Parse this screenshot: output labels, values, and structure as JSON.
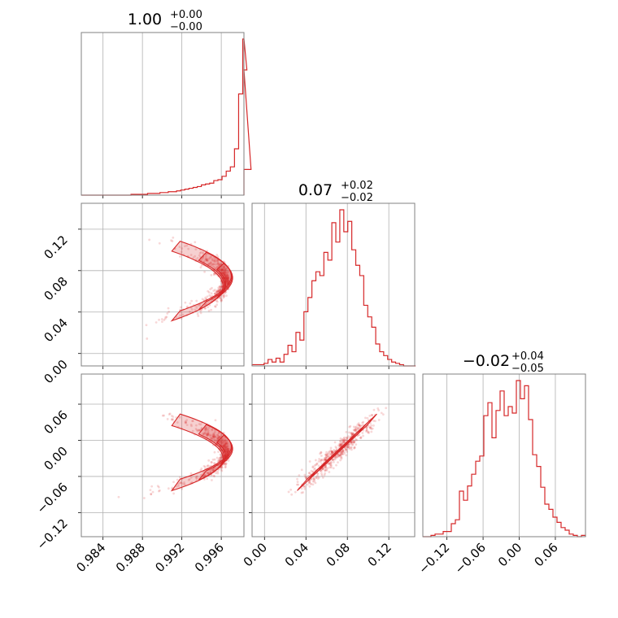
{
  "chart_data": {
    "type": "corner",
    "parameters": [
      {
        "title_value": "1.00",
        "title_plus": "+0.00",
        "title_minus": "−0.00",
        "range": [
          0.9818,
          0.9983
        ],
        "ticks": [
          0.984,
          0.988,
          0.992,
          0.996
        ],
        "tick_labels": [
          "0.984",
          "0.988",
          "0.992",
          "0.996"
        ],
        "histogram": {
          "bin_edges_start": 0.9818,
          "bin_width": 0.00042,
          "counts": [
            0,
            0,
            0,
            0,
            0,
            0,
            0,
            0,
            0,
            0,
            0,
            0,
            1,
            1,
            1,
            1,
            2,
            2,
            2,
            3,
            3,
            4,
            4,
            5,
            6,
            7,
            8,
            9,
            10,
            12,
            13,
            14,
            17,
            18,
            22,
            28,
            33,
            54,
            118,
            182,
            146,
            30
          ]
        }
      },
      {
        "title_value": "0.07",
        "title_plus": "+0.02",
        "title_minus": "−0.02",
        "range": [
          -0.012,
          0.145
        ],
        "ticks": [
          0.0,
          0.04,
          0.08,
          0.12
        ],
        "tick_labels": [
          "0.00",
          "0.04",
          "0.08",
          "0.12"
        ],
        "histogram": {
          "bin_edges_start": -0.012,
          "bin_width": 0.00385,
          "counts": [
            1,
            1,
            1,
            2,
            5,
            3,
            6,
            3,
            9,
            16,
            11,
            26,
            20,
            42,
            53,
            66,
            73,
            70,
            88,
            82,
            111,
            96,
            121,
            104,
            112,
            90,
            78,
            70,
            47,
            38,
            30,
            17,
            11,
            8,
            5,
            3,
            2,
            1,
            0,
            0,
            0,
            0
          ]
        }
      },
      {
        "title_value": "−0.02",
        "title_plus": "+0.04",
        "title_minus": "−0.05",
        "range": [
          -0.16,
          0.11
        ],
        "ticks": [
          -0.12,
          -0.06,
          0.0,
          0.06
        ],
        "tick_labels": [
          "−0.12",
          "−0.06",
          "0.00",
          "0.06"
        ],
        "histogram": {
          "bin_edges_start": -0.16,
          "bin_width": 0.00675,
          "counts": [
            0,
            0,
            1,
            2,
            2,
            4,
            4,
            10,
            13,
            35,
            28,
            39,
            48,
            58,
            62,
            93,
            103,
            76,
            97,
            112,
            93,
            100,
            95,
            120,
            106,
            116,
            90,
            63,
            54,
            38,
            25,
            21,
            15,
            11,
            7,
            5,
            2,
            1,
            0,
            1
          ]
        }
      }
    ],
    "pairs": [
      {
        "row": 1,
        "col": 0,
        "xlim": [
          0.9818,
          0.9983
        ],
        "ylim": [
          -0.012,
          0.145
        ],
        "yticks": [
          0.0,
          0.04,
          0.08,
          0.12
        ],
        "ytick_labels": [
          "0.00",
          "0.04",
          "0.08",
          "0.12"
        ]
      },
      {
        "row": 2,
        "col": 0,
        "xlim": [
          0.9818,
          0.9983
        ],
        "ylim": [
          -0.16,
          0.11
        ],
        "yticks": [
          -0.12,
          -0.06,
          0.0,
          0.06
        ],
        "ytick_labels": [
          "−0.12",
          "−0.06",
          "0.00",
          "0.06"
        ]
      },
      {
        "row": 2,
        "col": 1,
        "xlim": [
          -0.012,
          0.145
        ],
        "ylim": [
          -0.16,
          0.11
        ]
      }
    ],
    "color": "#d62728",
    "grid": true,
    "legend": "none"
  }
}
